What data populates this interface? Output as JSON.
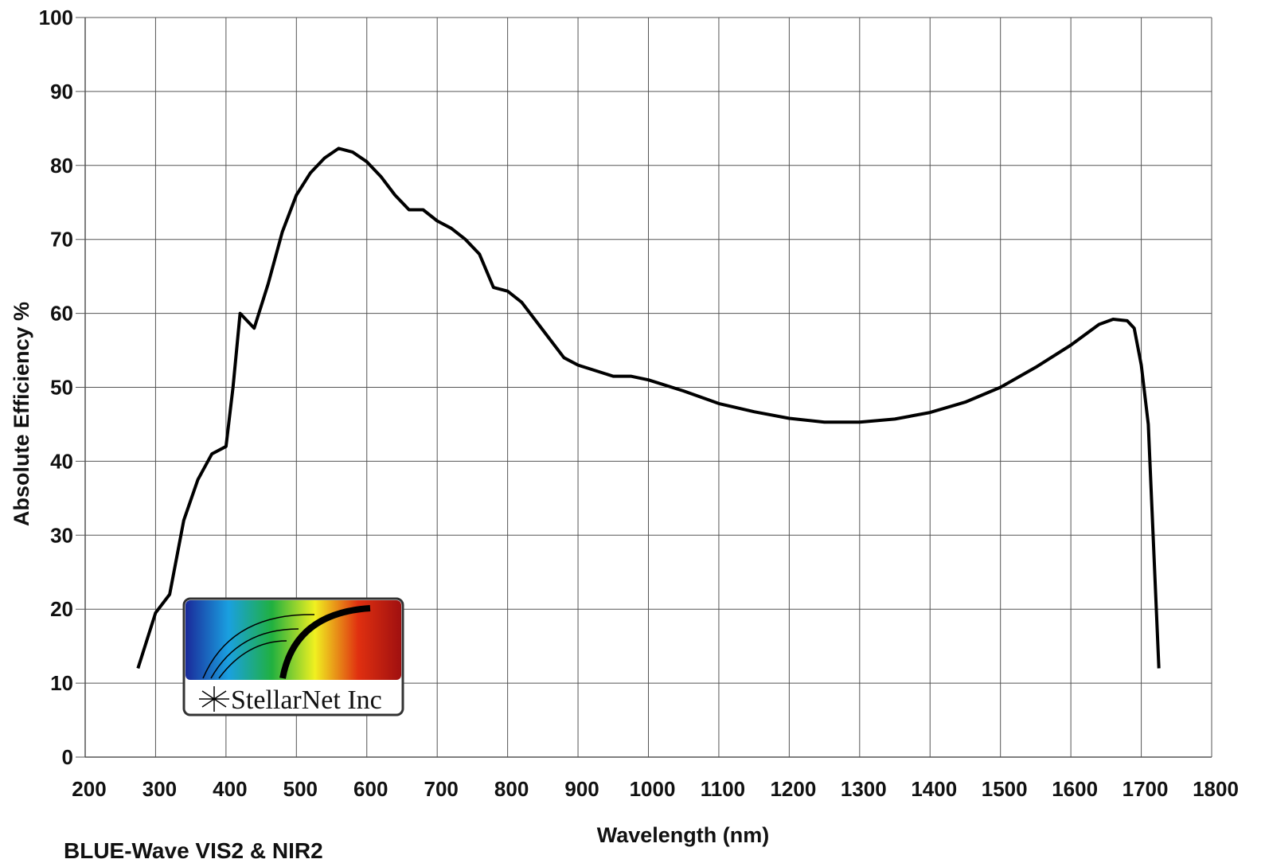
{
  "chart_data": {
    "type": "line",
    "title": "BLUE-Wave VIS2 & NIR2",
    "xlabel": "Wavelength (nm)",
    "ylabel": "Absolute Efficiency %",
    "logo_text": "StellarNet Inc",
    "x": [
      275,
      300,
      320,
      340,
      360,
      380,
      400,
      410,
      420,
      440,
      460,
      480,
      500,
      520,
      540,
      560,
      580,
      600,
      620,
      640,
      660,
      680,
      700,
      720,
      740,
      760,
      780,
      800,
      820,
      840,
      860,
      880,
      900,
      950,
      975,
      1000,
      1050,
      1100,
      1150,
      1200,
      1250,
      1300,
      1350,
      1400,
      1450,
      1500,
      1550,
      1600,
      1640,
      1660,
      1680,
      1690,
      1700,
      1710,
      1725
    ],
    "series": [
      {
        "name": "Absolute Efficiency",
        "color": "#000000",
        "values": [
          12,
          19.5,
          22,
          32,
          37.5,
          41,
          42,
          50,
          60,
          58,
          64,
          71,
          76,
          79,
          81,
          82.3,
          81.8,
          80.5,
          78.5,
          76,
          74,
          74,
          72.5,
          71.5,
          70,
          68,
          63.5,
          63,
          61.5,
          59,
          56.5,
          54,
          53,
          51.5,
          51.5,
          51,
          49.5,
          47.8,
          46.7,
          45.8,
          45.3,
          45.3,
          45.7,
          46.6,
          48,
          50,
          52.7,
          55.7,
          58.5,
          59.2,
          59,
          58,
          53,
          45,
          12
        ]
      }
    ],
    "xlim": [
      200,
      1800
    ],
    "xticks": [
      200,
      300,
      400,
      500,
      600,
      700,
      800,
      900,
      1000,
      1100,
      1200,
      1300,
      1400,
      1500,
      1600,
      1700,
      1800
    ],
    "ylim": [
      0,
      100
    ],
    "yticks": [
      0,
      10,
      20,
      30,
      40,
      50,
      60,
      70,
      80,
      90,
      100
    ],
    "grid": true
  }
}
